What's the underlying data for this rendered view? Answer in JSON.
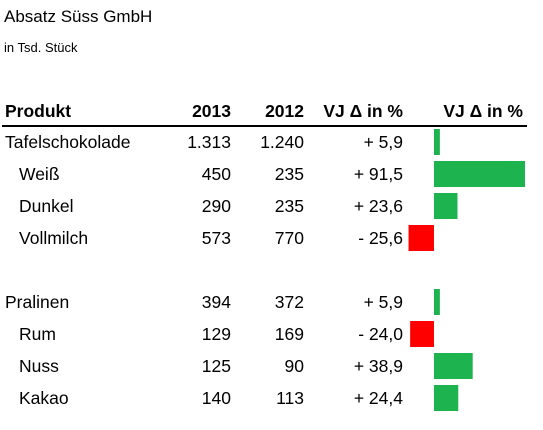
{
  "title": "Absatz Süss GmbH",
  "subtitle": "in Tsd. Stück",
  "colors": {
    "positive": "#1db34f",
    "negative": "#ff0000",
    "text": "#000000",
    "divider": "#000000"
  },
  "chart_data": {
    "type": "table",
    "title": "Absatz Süss GmbH",
    "subtitle": "in Tsd. Stück",
    "columns": [
      "Produkt",
      "2013",
      "2012",
      "VJ Δ in %",
      "VJ Δ in %"
    ],
    "bar_column": {
      "header": "VJ Δ in %",
      "type": "bar",
      "value_key": "delta",
      "max_abs": 91.5,
      "positive_color": "#1db34f",
      "negative_color": "#ff0000"
    },
    "groups": [
      {
        "rows": [
          {
            "product": "Tafelschokolade",
            "y2013": "1.313",
            "y2012": "1.240",
            "delta_label": "+ 5,9",
            "delta": 5.9,
            "indent": false
          },
          {
            "product": "Weiß",
            "y2013": "450",
            "y2012": "235",
            "delta_label": "+ 91,5",
            "delta": 91.5,
            "indent": true
          },
          {
            "product": "Dunkel",
            "y2013": "290",
            "y2012": "235",
            "delta_label": "+ 23,6",
            "delta": 23.6,
            "indent": true
          },
          {
            "product": "Vollmilch",
            "y2013": "573",
            "y2012": "770",
            "delta_label": "- 25,6",
            "delta": -25.6,
            "indent": true
          }
        ]
      },
      {
        "rows": [
          {
            "product": "Pralinen",
            "y2013": "394",
            "y2012": "372",
            "delta_label": "+ 5,9",
            "delta": 5.9,
            "indent": false
          },
          {
            "product": "Rum",
            "y2013": "129",
            "y2012": "169",
            "delta_label": "- 24,0",
            "delta": -24.0,
            "indent": true
          },
          {
            "product": "Nuss",
            "y2013": "125",
            "y2012": "90",
            "delta_label": "+ 38,9",
            "delta": 38.9,
            "indent": true
          },
          {
            "product": "Kakao",
            "y2013": "140",
            "y2012": "113",
            "delta_label": "+ 24,4",
            "delta": 24.4,
            "indent": true
          }
        ]
      }
    ]
  }
}
